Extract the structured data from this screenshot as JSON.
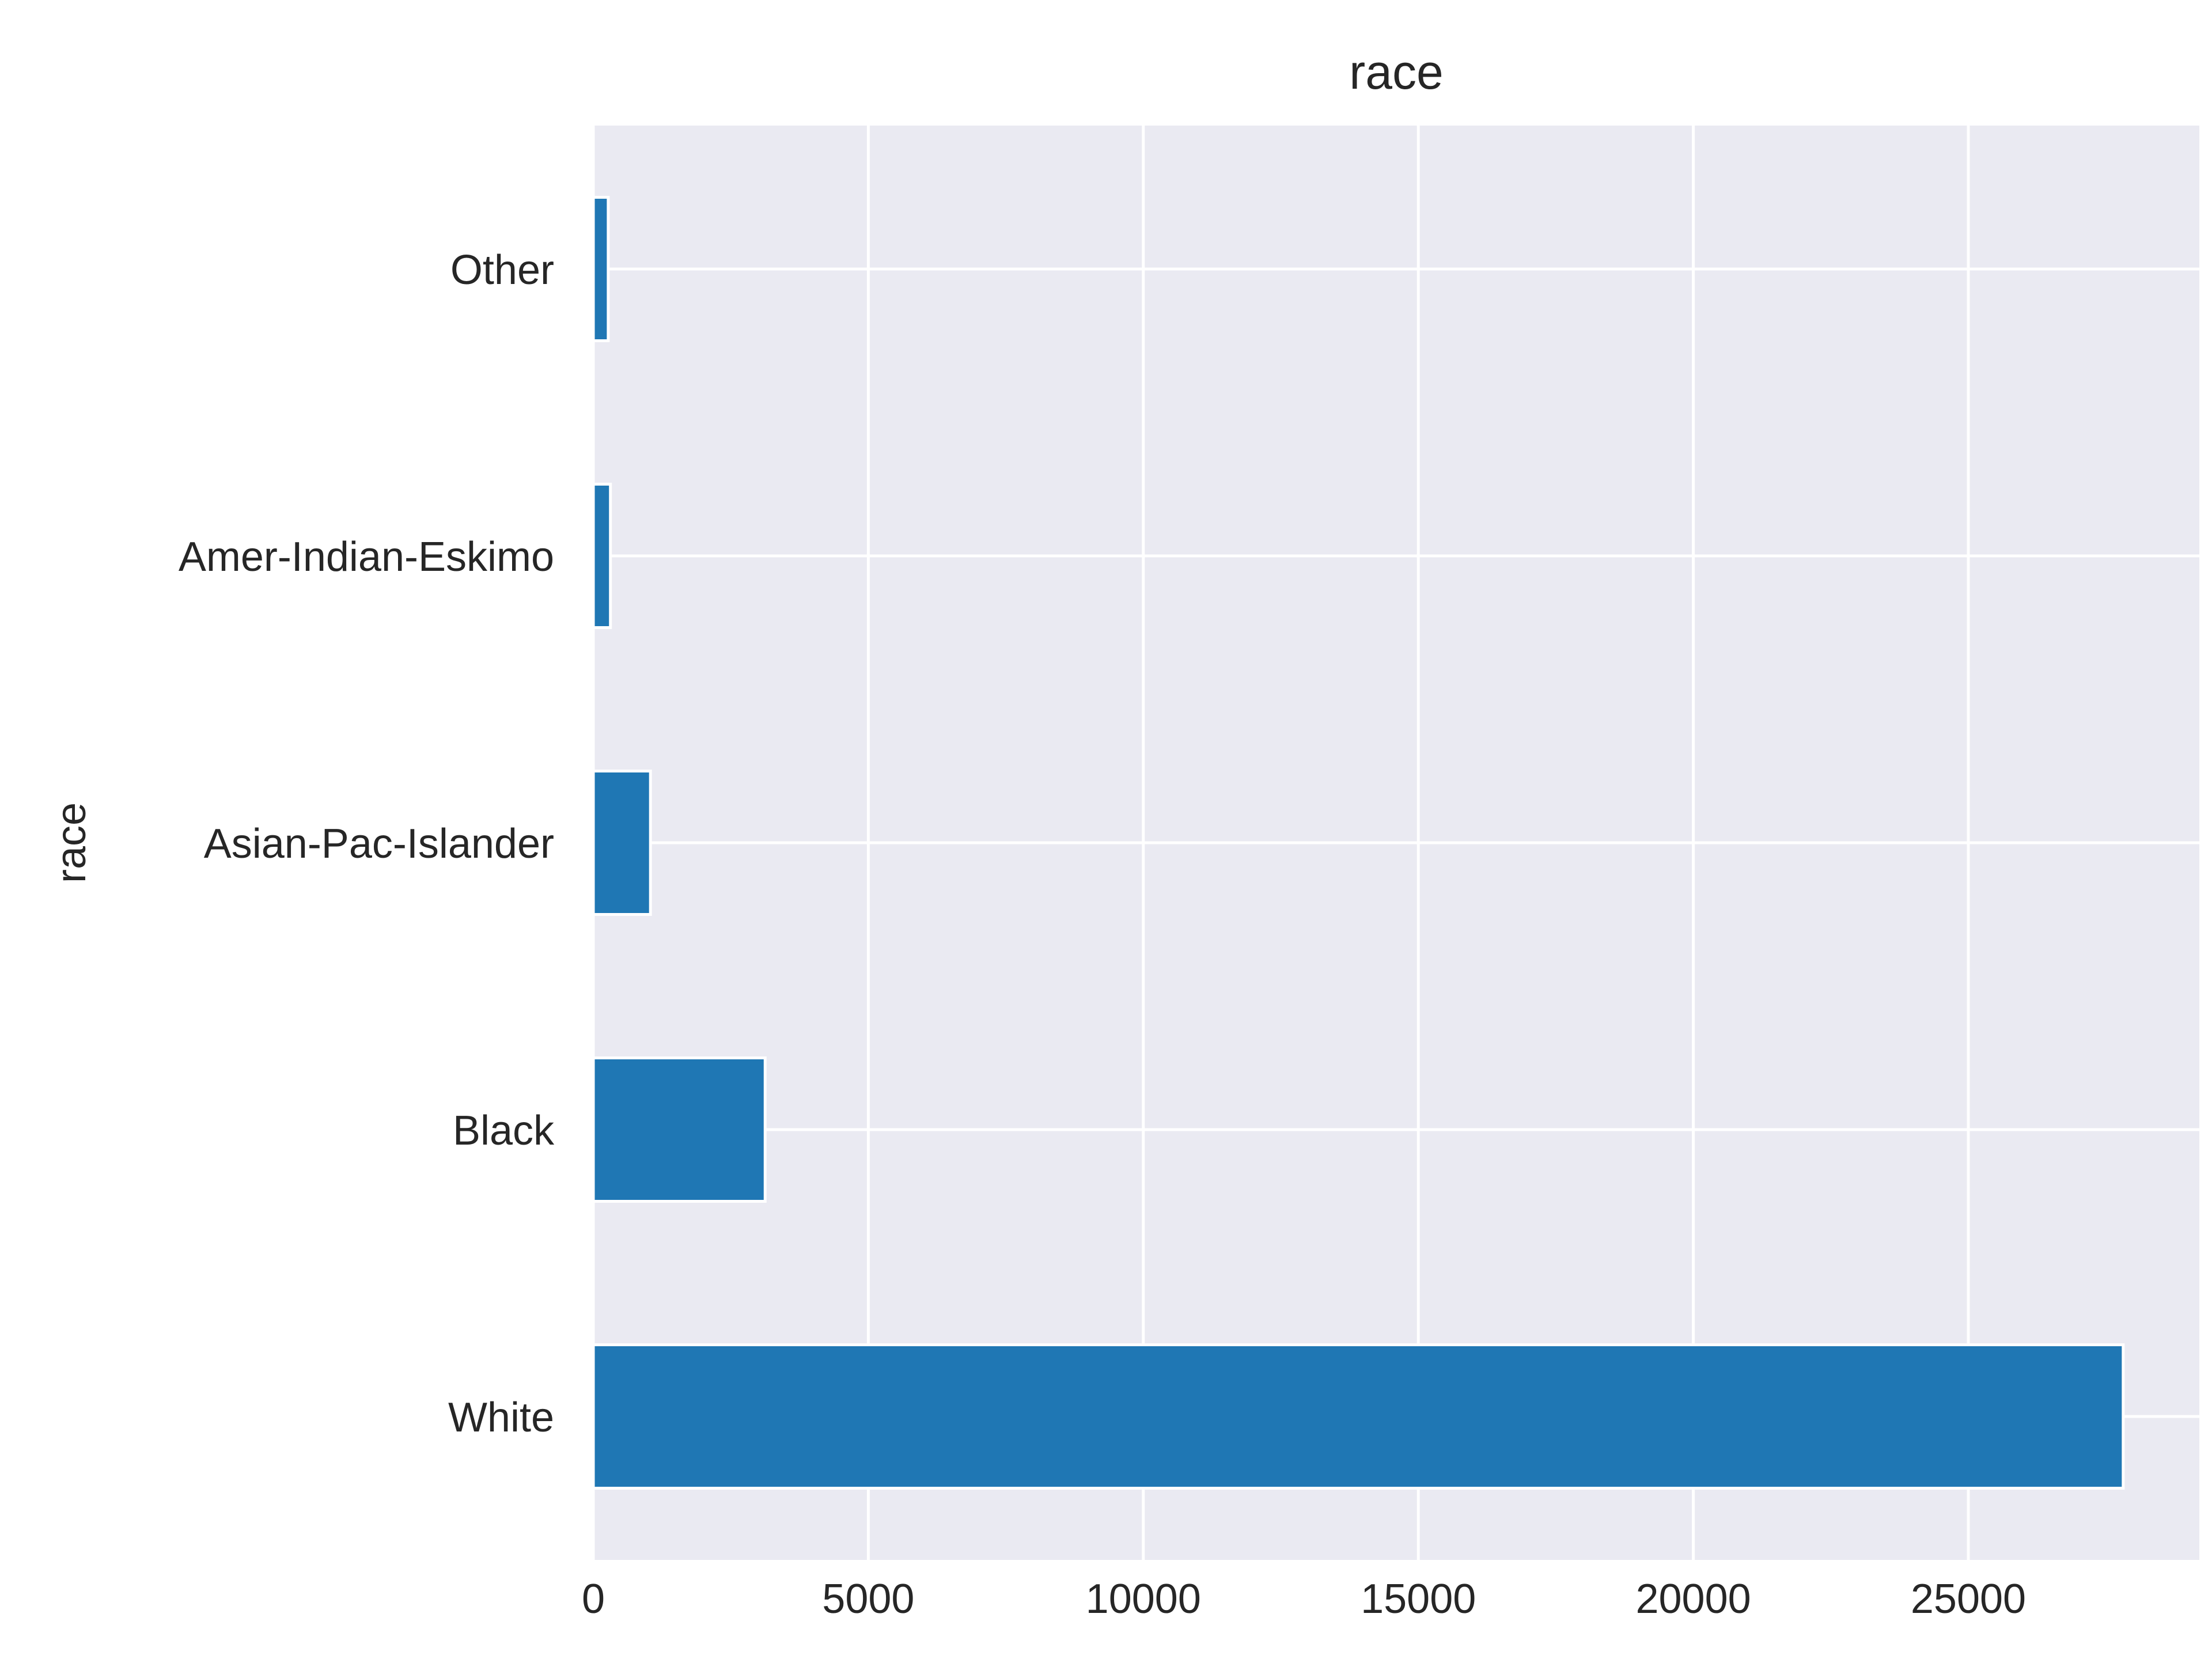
{
  "chart_data": {
    "type": "bar",
    "orientation": "horizontal",
    "title": "race",
    "xlabel": "",
    "ylabel": "race",
    "categories": [
      "White",
      "Black",
      "Asian-Pac-Islander",
      "Amer-Indian-Eskimo",
      "Other"
    ],
    "values": [
      27816,
      3124,
      1039,
      311,
      271
    ],
    "xlim": [
      0,
      29200
    ],
    "xticks": [
      0,
      5000,
      10000,
      15000,
      20000,
      25000
    ],
    "xtick_labels": [
      "0",
      "5000",
      "10000",
      "15000",
      "20000",
      "25000"
    ],
    "grid": true,
    "legend": "none",
    "colors": {
      "bar": "#1f77b4",
      "background": "#eaeaf2",
      "grid": "#ffffff",
      "text": "#262626"
    }
  }
}
